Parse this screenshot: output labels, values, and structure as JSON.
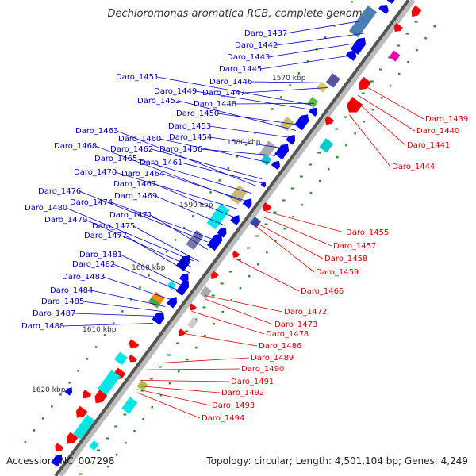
{
  "title": "Dechloromonas aromatica RCB, complete genome",
  "footer": {
    "accession": "Accession: NC_007298",
    "summary": "Topology: circular; Length: 4,501,104 bp; Genes: 4,249"
  },
  "colors": {
    "forward_label": "#0000cc",
    "reverse_label": "#e00000",
    "backbone_dark": "#555555",
    "backbone_light": "#bbbbbb",
    "tick": "#2a8a2a"
  },
  "scale_ticks": [
    "1570 kbp",
    "1580 kbp",
    "1590 kbp",
    "1600 kbp",
    "1610 kbp",
    "1620 kbp"
  ],
  "forward_genes": [
    "Daro_1437",
    "Daro_1442",
    "Daro_1443",
    "Daro_1445",
    "Daro_1451",
    "Daro_1446",
    "Daro_1449",
    "Daro_1447",
    "Daro_1452",
    "Daro_1448",
    "Daro_1450",
    "Daro_1453",
    "Daro_1463",
    "Daro_1454",
    "Daro_1460",
    "Daro_1468",
    "Daro_1462",
    "Daro_1456",
    "Daro_1465",
    "Daro_1461",
    "Daro_1470",
    "Daro_1464",
    "Daro_1467",
    "Daro_1476",
    "Daro_1469",
    "Daro_1474",
    "Daro_1480",
    "Daro_1471",
    "Daro_1479",
    "Daro_1475",
    "Daro_1477",
    "Daro_1481",
    "Daro_1482",
    "Daro_1483",
    "Daro_1484",
    "Daro_1485",
    "Daro_1487",
    "Daro_1488"
  ],
  "reverse_genes": [
    "Daro_1439",
    "Daro_1440",
    "Daro_1441",
    "Daro_1444",
    "Daro_1455",
    "Daro_1457",
    "Daro_1458",
    "Daro_1459",
    "Daro_1466",
    "Daro_1472",
    "Daro_1473",
    "Daro_1478",
    "Daro_1486",
    "Daro_1489",
    "Daro_1490",
    "Daro_1491",
    "Daro_1492",
    "Daro_1493",
    "Daro_1494"
  ]
}
